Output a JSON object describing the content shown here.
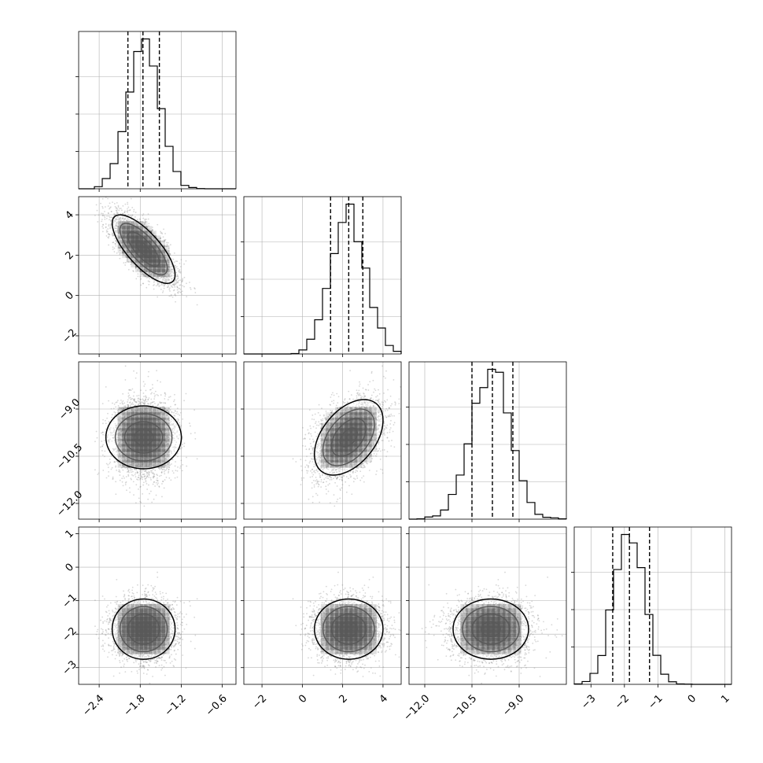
{
  "chart_data": {
    "type": "scatter",
    "title": "",
    "variant": "corner plot (pairwise posterior samples)",
    "n_params": 4,
    "params": [
      {
        "label": "",
        "range": [
          -2.7,
          -0.4
        ],
        "ticks": [
          -2.4,
          -1.8,
          -1.2,
          -0.6
        ],
        "tick_labels": [
          "−2.4",
          "−1.8",
          "−1.2",
          "−0.6"
        ],
        "mean": -1.75,
        "std": 0.23,
        "quantiles": [
          -1.98,
          -1.76,
          -1.52
        ]
      },
      {
        "label": "",
        "range": [
          -2.9,
          4.9
        ],
        "ticks": [
          -2,
          0,
          2,
          4
        ],
        "tick_labels": [
          "−2",
          "0",
          "2",
          "4"
        ],
        "mean": 2.3,
        "std": 0.85,
        "quantiles": [
          1.4,
          2.3,
          3.0
        ]
      },
      {
        "label": "",
        "range": [
          -12.5,
          -7.5
        ],
        "ticks": [
          -12.0,
          -10.5,
          -9.0
        ],
        "tick_labels": [
          "−12.0",
          "−10.5",
          "−9.0"
        ],
        "mean": -9.9,
        "std": 0.6,
        "quantiles": [
          -10.5,
          -9.85,
          -9.2
        ]
      },
      {
        "label": "",
        "range": [
          -3.5,
          1.2
        ],
        "ticks": [
          -3,
          -2,
          -1,
          0,
          1
        ],
        "tick_labels": [
          "−3",
          "−2",
          "−1",
          "0",
          "1"
        ],
        "mean": -1.85,
        "std": 0.45,
        "quantiles": [
          -2.35,
          -1.85,
          -1.25
        ]
      }
    ],
    "correlations": [
      [
        1,
        -0.75,
        0.0,
        0.0
      ],
      [
        -0.75,
        1,
        0.45,
        0.0
      ],
      [
        0.0,
        0.45,
        1,
        0.0
      ],
      [
        0.0,
        0.0,
        0.0,
        1
      ]
    ],
    "n_samples": 3500,
    "histogram_bins": 20,
    "contour_levels_sigma": [
      0.5,
      1.0,
      1.5,
      2.0
    ],
    "grid": true,
    "colors": {
      "line": "#000000",
      "grid": "#b0b0b0",
      "points": "#8c8c8c",
      "density": "#000000"
    }
  }
}
